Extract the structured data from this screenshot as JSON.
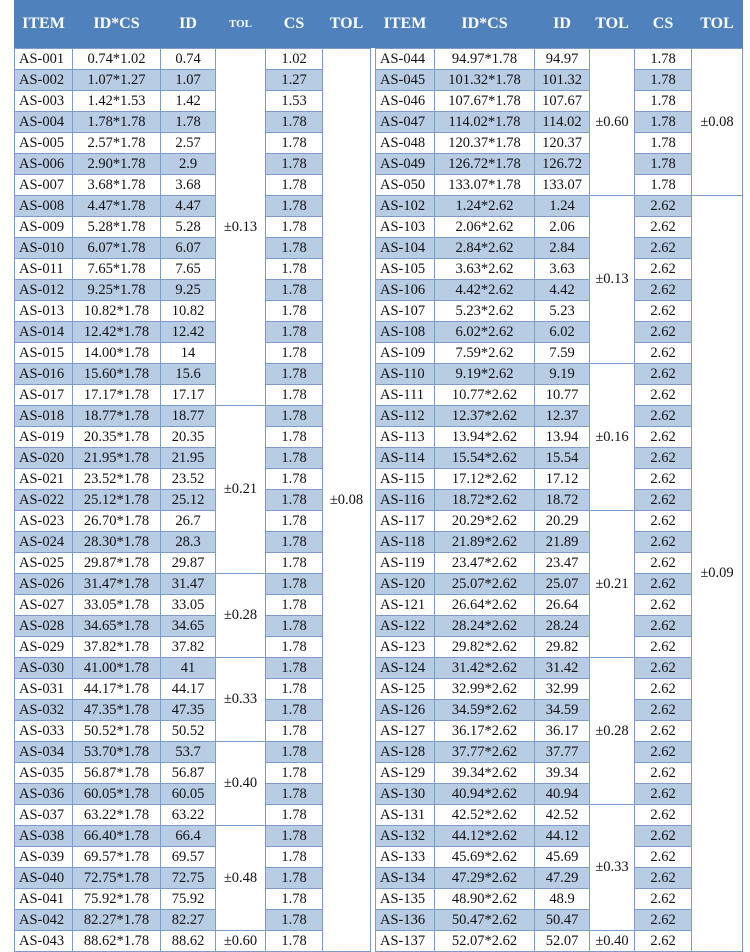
{
  "headers": [
    "ITEM",
    "ID*CS",
    "ID",
    "TOL",
    "CS",
    "TOL"
  ],
  "colors": {
    "header": "#4f81bd",
    "stripe": "#b8cce4",
    "border": "#7b9cc8"
  },
  "left": {
    "rows": [
      [
        "AS-001",
        "0.74*1.02",
        "0.74",
        "1.02"
      ],
      [
        "AS-002",
        "1.07*1.27",
        "1.07",
        "1.27"
      ],
      [
        "AS-003",
        "1.42*1.53",
        "1.42",
        "1.53"
      ],
      [
        "AS-004",
        "1.78*1.78",
        "1.78",
        "1.78"
      ],
      [
        "AS-005",
        "2.57*1.78",
        "2.57",
        "1.78"
      ],
      [
        "AS-006",
        "2.90*1.78",
        "2.9",
        "1.78"
      ],
      [
        "AS-007",
        "3.68*1.78",
        "3.68",
        "1.78"
      ],
      [
        "AS-008",
        "4.47*1.78",
        "4.47",
        "1.78"
      ],
      [
        "AS-009",
        "5.28*1.78",
        "5.28",
        "1.78"
      ],
      [
        "AS-010",
        "6.07*1.78",
        "6.07",
        "1.78"
      ],
      [
        "AS-011",
        "7.65*1.78",
        "7.65",
        "1.78"
      ],
      [
        "AS-012",
        "9.25*1.78",
        "9.25",
        "1.78"
      ],
      [
        "AS-013",
        "10.82*1.78",
        "10.82",
        "1.78"
      ],
      [
        "AS-014",
        "12.42*1.78",
        "12.42",
        "1.78"
      ],
      [
        "AS-015",
        "14.00*1.78",
        "14",
        "1.78"
      ],
      [
        "AS-016",
        "15.60*1.78",
        "15.6",
        "1.78"
      ],
      [
        "AS-017",
        "17.17*1.78",
        "17.17",
        "1.78"
      ],
      [
        "AS-018",
        "18.77*1.78",
        "18.77",
        "1.78"
      ],
      [
        "AS-019",
        "20.35*1.78",
        "20.35",
        "1.78"
      ],
      [
        "AS-020",
        "21.95*1.78",
        "21.95",
        "1.78"
      ],
      [
        "AS-021",
        "23.52*1.78",
        "23.52",
        "1.78"
      ],
      [
        "AS-022",
        "25.12*1.78",
        "25.12",
        "1.78"
      ],
      [
        "AS-023",
        "26.70*1.78",
        "26.7",
        "1.78"
      ],
      [
        "AS-024",
        "28.30*1.78",
        "28.3",
        "1.78"
      ],
      [
        "AS-025",
        "29.87*1.78",
        "29.87",
        "1.78"
      ],
      [
        "AS-026",
        "31.47*1.78",
        "31.47",
        "1.78"
      ],
      [
        "AS-027",
        "33.05*1.78",
        "33.05",
        "1.78"
      ],
      [
        "AS-028",
        "34.65*1.78",
        "34.65",
        "1.78"
      ],
      [
        "AS-029",
        "37.82*1.78",
        "37.82",
        "1.78"
      ],
      [
        "AS-030",
        "41.00*1.78",
        "41",
        "1.78"
      ],
      [
        "AS-031",
        "44.17*1.78",
        "44.17",
        "1.78"
      ],
      [
        "AS-032",
        "47.35*1.78",
        "47.35",
        "1.78"
      ],
      [
        "AS-033",
        "50.52*1.78",
        "50.52",
        "1.78"
      ],
      [
        "AS-034",
        "53.70*1.78",
        "53.7",
        "1.78"
      ],
      [
        "AS-035",
        "56.87*1.78",
        "56.87",
        "1.78"
      ],
      [
        "AS-036",
        "60.05*1.78",
        "60.05",
        "1.78"
      ],
      [
        "AS-037",
        "63.22*1.78",
        "63.22",
        "1.78"
      ],
      [
        "AS-038",
        "66.40*1.78",
        "66.4",
        "1.78"
      ],
      [
        "AS-039",
        "69.57*1.78",
        "69.57",
        "1.78"
      ],
      [
        "AS-040",
        "72.75*1.78",
        "72.75",
        "1.78"
      ],
      [
        "AS-041",
        "75.92*1.78",
        "75.92",
        "1.78"
      ],
      [
        "AS-042",
        "82.27*1.78",
        "82.27",
        "1.78"
      ],
      [
        "AS-043",
        "88.62*1.78",
        "88.62",
        "1.78"
      ]
    ],
    "id_tol": [
      {
        "label": "±0.13",
        "span": 17
      },
      {
        "label": "±0.21",
        "span": 8
      },
      {
        "label": "±0.28",
        "span": 4
      },
      {
        "label": "±0.33",
        "span": 4
      },
      {
        "label": "±0.40",
        "span": 4
      },
      {
        "label": "±0.48",
        "span": 5
      },
      {
        "label": "±0.60",
        "span": 1
      }
    ],
    "cs_tol": [
      {
        "label": "±0.08",
        "span": 43
      }
    ]
  },
  "right": {
    "rows": [
      [
        "AS-044",
        "94.97*1.78",
        "94.97",
        "1.78"
      ],
      [
        "AS-045",
        "101.32*1.78",
        "101.32",
        "1.78"
      ],
      [
        "AS-046",
        "107.67*1.78",
        "107.67",
        "1.78"
      ],
      [
        "AS-047",
        "114.02*1.78",
        "114.02",
        "1.78"
      ],
      [
        "AS-048",
        "120.37*1.78",
        "120.37",
        "1.78"
      ],
      [
        "AS-049",
        "126.72*1.78",
        "126.72",
        "1.78"
      ],
      [
        "AS-050",
        "133.07*1.78",
        "133.07",
        "1.78"
      ],
      [
        "AS-102",
        "1.24*2.62",
        "1.24",
        "2.62"
      ],
      [
        "AS-103",
        "2.06*2.62",
        "2.06",
        "2.62"
      ],
      [
        "AS-104",
        "2.84*2.62",
        "2.84",
        "2.62"
      ],
      [
        "AS-105",
        "3.63*2.62",
        "3.63",
        "2.62"
      ],
      [
        "AS-106",
        "4.42*2.62",
        "4.42",
        "2.62"
      ],
      [
        "AS-107",
        "5.23*2.62",
        "5.23",
        "2.62"
      ],
      [
        "AS-108",
        "6.02*2.62",
        "6.02",
        "2.62"
      ],
      [
        "AS-109",
        "7.59*2.62",
        "7.59",
        "2.62"
      ],
      [
        "AS-110",
        "9.19*2.62",
        "9.19",
        "2.62"
      ],
      [
        "AS-111",
        "10.77*2.62",
        "10.77",
        "2.62"
      ],
      [
        "AS-112",
        "12.37*2.62",
        "12.37",
        "2.62"
      ],
      [
        "AS-113",
        "13.94*2.62",
        "13.94",
        "2.62"
      ],
      [
        "AS-114",
        "15.54*2.62",
        "15.54",
        "2.62"
      ],
      [
        "AS-115",
        "17.12*2.62",
        "17.12",
        "2.62"
      ],
      [
        "AS-116",
        "18.72*2.62",
        "18.72",
        "2.62"
      ],
      [
        "AS-117",
        "20.29*2.62",
        "20.29",
        "2.62"
      ],
      [
        "AS-118",
        "21.89*2.62",
        "21.89",
        "2.62"
      ],
      [
        "AS-119",
        "23.47*2.62",
        "23.47",
        "2.62"
      ],
      [
        "AS-120",
        "25.07*2.62",
        "25.07",
        "2.62"
      ],
      [
        "AS-121",
        "26.64*2.62",
        "26.64",
        "2.62"
      ],
      [
        "AS-122",
        "28.24*2.62",
        "28.24",
        "2.62"
      ],
      [
        "AS-123",
        "29.82*2.62",
        "29.82",
        "2.62"
      ],
      [
        "AS-124",
        "31.42*2.62",
        "31.42",
        "2.62"
      ],
      [
        "AS-125",
        "32.99*2.62",
        "32.99",
        "2.62"
      ],
      [
        "AS-126",
        "34.59*2.62",
        "34.59",
        "2.62"
      ],
      [
        "AS-127",
        "36.17*2.62",
        "36.17",
        "2.62"
      ],
      [
        "AS-128",
        "37.77*2.62",
        "37.77",
        "2.62"
      ],
      [
        "AS-129",
        "39.34*2.62",
        "39.34",
        "2.62"
      ],
      [
        "AS-130",
        "40.94*2.62",
        "40.94",
        "2.62"
      ],
      [
        "AS-131",
        "42.52*2.62",
        "42.52",
        "2.62"
      ],
      [
        "AS-132",
        "44.12*2.62",
        "44.12",
        "2.62"
      ],
      [
        "AS-133",
        "45.69*2.62",
        "45.69",
        "2.62"
      ],
      [
        "AS-134",
        "47.29*2.62",
        "47.29",
        "2.62"
      ],
      [
        "AS-135",
        "48.90*2.62",
        "48.9",
        "2.62"
      ],
      [
        "AS-136",
        "50.47*2.62",
        "50.47",
        "2.62"
      ],
      [
        "AS-137",
        "52.07*2.62",
        "52.07",
        "2.62"
      ]
    ],
    "id_tol": [
      {
        "label": "±0.60",
        "span": 7
      },
      {
        "label": "±0.13",
        "span": 8
      },
      {
        "label": "±0.16",
        "span": 7
      },
      {
        "label": "±0.21",
        "span": 7
      },
      {
        "label": "±0.28",
        "span": 7
      },
      {
        "label": "±0.33",
        "span": 6
      },
      {
        "label": "±0.40",
        "span": 1
      }
    ],
    "cs_tol": [
      {
        "label": "±0.08",
        "span": 7
      },
      {
        "label": "±0.09",
        "span": 36
      }
    ]
  }
}
